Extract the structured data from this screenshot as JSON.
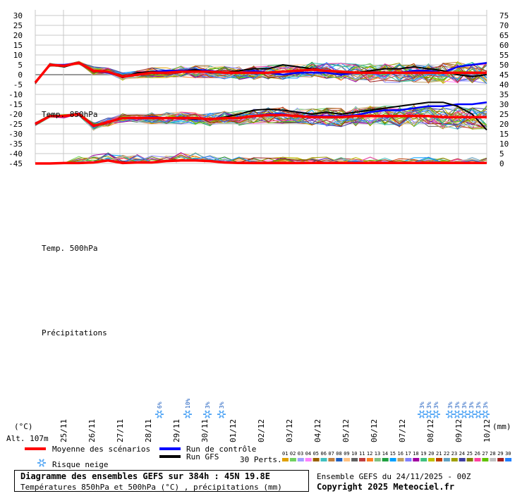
{
  "chart_data": {
    "type": "line",
    "title": "Diagramme des ensembles GEFS sur 384h : 45N 19.8E",
    "subtitle": "Températures 850hPa et 500hPa (°C) , précipitations (mm)",
    "left_axis": {
      "unit": "(°C)",
      "ticks": [
        30,
        25,
        20,
        15,
        10,
        5,
        0,
        -5,
        -10,
        -15,
        -20,
        -25,
        -30,
        -35,
        -40,
        -45
      ],
      "range": [
        -45,
        30
      ]
    },
    "right_axis": {
      "unit": "(mm)",
      "ticks": [
        75,
        70,
        65,
        60,
        55,
        50,
        45,
        40,
        35,
        30,
        25,
        20,
        15,
        10,
        5,
        0
      ],
      "range": [
        0,
        75
      ]
    },
    "x_labels": [
      "25/11",
      "26/11",
      "27/11",
      "28/11",
      "29/11",
      "30/11",
      "01/12",
      "02/12",
      "03/12",
      "04/12",
      "05/12",
      "06/12",
      "07/12",
      "08/12",
      "09/12",
      "10/12"
    ],
    "altitude": "Alt. 107m",
    "panel_labels": {
      "t850": "Temp. 850hPa",
      "t500": "Temp. 500hPa",
      "precip": "Précipitations"
    },
    "legend": {
      "mean": "Moyenne des scénarios",
      "control": "Run de contrôle",
      "gfs": "Run GFS",
      "snow": "Risque neige",
      "perts": "30 Perts."
    },
    "legend_colors": {
      "mean": "#ff0000",
      "control": "#0000ff",
      "gfs": "#000000",
      "snow": "#5aaaf5"
    },
    "pert_numbers": [
      "01",
      "02",
      "03",
      "04",
      "05",
      "06",
      "07",
      "08",
      "09",
      "10",
      "11",
      "12",
      "13",
      "14",
      "15",
      "16",
      "17",
      "18",
      "19",
      "20",
      "21",
      "22",
      "23",
      "24",
      "25",
      "26",
      "27",
      "28",
      "29",
      "30"
    ],
    "pert_colors": [
      "#e0a000",
      "#70d060",
      "#a0a0ff",
      "#ff80ff",
      "#9a6000",
      "#40c0c0",
      "#c08040",
      "#2060c0",
      "#ffc080",
      "#606060",
      "#c04040",
      "#ff8020",
      "#80c080",
      "#20a040",
      "#00a0ff",
      "#c0a060",
      "#8080ff",
      "#a000a0",
      "#40c080",
      "#c0c000",
      "#c04000",
      "#60a0c0",
      "#a0a000",
      "#4040a0",
      "#808000",
      "#ff40a0",
      "#60c000",
      "#c0c0c0",
      "#a02020",
      "#2080ff"
    ],
    "series": {
      "t850_mean": [
        -4,
        5,
        4.5,
        6,
        2,
        1.5,
        -1,
        0,
        1,
        1,
        1.5,
        1.5,
        1.5,
        1,
        1,
        1,
        1,
        1.5,
        2,
        2.5,
        2,
        1.5,
        1,
        1,
        1,
        1,
        1,
        1,
        1,
        1,
        1,
        1
      ],
      "t850_control": [
        -4,
        5,
        5,
        6,
        2,
        1,
        -1,
        0,
        1.5,
        2,
        2,
        2.5,
        2,
        1,
        1,
        2,
        1,
        0,
        1,
        1,
        1,
        0,
        1,
        1,
        1,
        1,
        2,
        2,
        1,
        4,
        5,
        6
      ],
      "t850_gfs": [
        -4,
        5,
        4,
        6,
        2,
        1.5,
        -1.5,
        1,
        1.5,
        1,
        1.5,
        2.5,
        1,
        1,
        2,
        3,
        3,
        5,
        4,
        3,
        2,
        1,
        1,
        2,
        3,
        3,
        4,
        3,
        2,
        0,
        -1,
        0
      ],
      "t500_mean": [
        -25,
        -21,
        -21,
        -20,
        -26,
        -24,
        -22,
        -22,
        -22,
        -22,
        -22,
        -22,
        -22.5,
        -22,
        -22,
        -21,
        -20.5,
        -20.5,
        -21,
        -21.5,
        -21.5,
        -21.5,
        -21,
        -21,
        -21,
        -21,
        -21,
        -21,
        -21.5,
        -21.5,
        -21.5,
        -21.5
      ],
      "t500_control": [
        -25,
        -21,
        -21,
        -20,
        -26,
        -24,
        -22,
        -22,
        -21.5,
        -22,
        -22,
        -22.5,
        -22.5,
        -22,
        -22,
        -21,
        -20,
        -20,
        -21,
        -21,
        -21,
        -21,
        -20.5,
        -19,
        -18,
        -18,
        -17,
        -16,
        -16,
        -15,
        -15,
        -14
      ],
      "t500_gfs": [
        -25,
        -21,
        -21,
        -20,
        -26,
        -24,
        -22,
        -22,
        -22,
        -22,
        -22,
        -22.5,
        -22.5,
        -21.5,
        -20,
        -18,
        -17.5,
        -18,
        -19,
        -20,
        -19,
        -20,
        -19,
        -18,
        -17,
        -16,
        -15,
        -14,
        -14,
        -16,
        -20,
        -28
      ],
      "precip_mean": [
        0,
        0,
        0.2,
        0.2,
        0.5,
        1.5,
        0.2,
        0.5,
        0.5,
        1.2,
        1.5,
        1.5,
        1.2,
        0.5,
        0.3,
        0.2,
        0.2,
        0.2,
        0.2,
        0.3,
        0.3,
        0.3,
        0.3,
        0.3,
        0.3,
        0.3,
        0.3,
        0.3,
        0.3,
        0.3,
        0.3,
        0.3
      ],
      "snow_risk": [
        {
          "date_index": 4.4,
          "label": "6%"
        },
        {
          "date_index": 5.4,
          "label": "10%"
        },
        {
          "date_index": 6.1,
          "label": "3%"
        },
        {
          "date_index": 6.6,
          "label": "3%"
        },
        {
          "date_index": 13.7,
          "label": "3%"
        },
        {
          "date_index": 13.95,
          "label": "3%"
        },
        {
          "date_index": 14.2,
          "label": "3%"
        },
        {
          "date_index": 14.7,
          "label": "3%"
        },
        {
          "date_index": 14.95,
          "label": "3%"
        },
        {
          "date_index": 15.2,
          "label": "3%"
        },
        {
          "date_index": 15.45,
          "label": "3%"
        },
        {
          "date_index": 15.7,
          "label": "3%"
        },
        {
          "date_index": 15.95,
          "label": "3%"
        }
      ]
    }
  },
  "footer": {
    "title": "Diagramme des ensembles GEFS sur 384h : 45N 19.8E",
    "subtitle": "Températures 850hPa et 500hPa (°C) , précipitations (mm)",
    "run_info": "Ensemble GEFS du 24/11/2025 - 00Z",
    "copyright": "Copyright 2025 Meteociel.fr"
  }
}
